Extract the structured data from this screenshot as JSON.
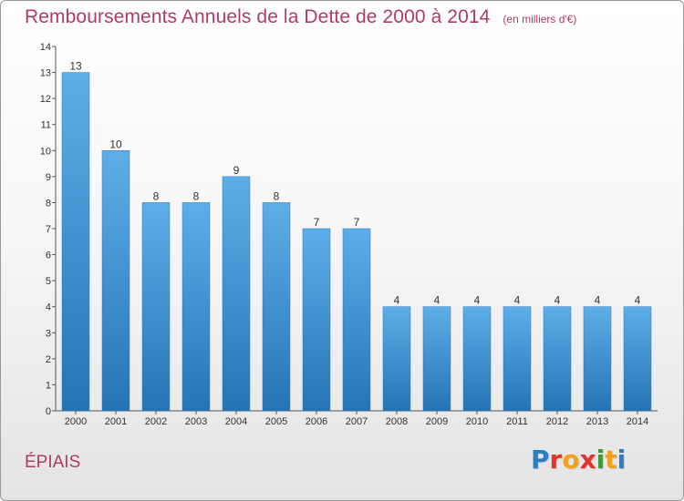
{
  "header": {
    "title": "Remboursements Annuels de la Dette de 2000 à 2014",
    "unit": "(en milliers d'€)"
  },
  "footer": {
    "place": "ÉPIAIS",
    "logo_letters": [
      "P",
      "r",
      "o",
      "x",
      "i",
      "t",
      "i"
    ]
  },
  "colors": {
    "title": "#b03a68",
    "bar_top": "#5daee8",
    "bar_bottom": "#2574b5"
  },
  "chart_data": {
    "type": "bar",
    "title": "Remboursements Annuels de la Dette de 2000 à 2014",
    "subtitle": "(en milliers d'€)",
    "xlabel": "",
    "ylabel": "",
    "categories": [
      "2000",
      "2001",
      "2002",
      "2003",
      "2004",
      "2005",
      "2006",
      "2007",
      "2008",
      "2009",
      "2010",
      "2011",
      "2012",
      "2013",
      "2014"
    ],
    "values": [
      13,
      10,
      8,
      8,
      9,
      8,
      7,
      7,
      4,
      4,
      4,
      4,
      4,
      4,
      4
    ],
    "ylim": [
      0,
      14
    ],
    "yticks": [
      0,
      1,
      2,
      3,
      4,
      5,
      6,
      7,
      8,
      9,
      10,
      11,
      12,
      13,
      14
    ],
    "grid": false,
    "legend": "none",
    "data_labels": true
  }
}
